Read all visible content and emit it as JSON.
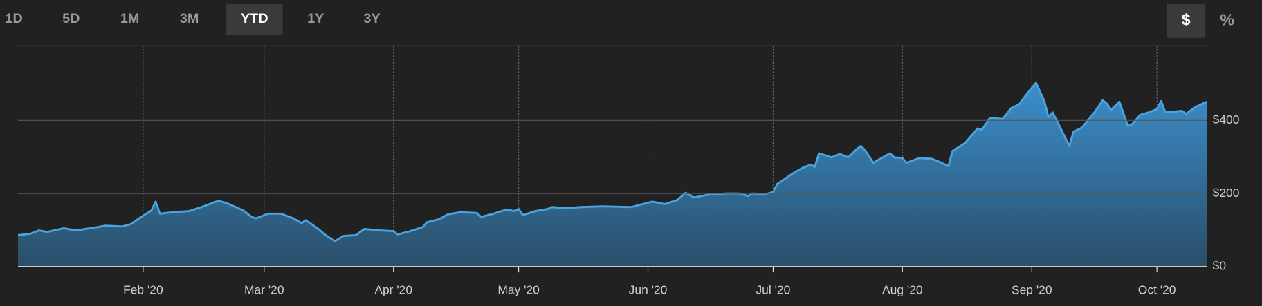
{
  "controls": {
    "ranges": [
      "1D",
      "5D",
      "1M",
      "3M",
      "YTD",
      "1Y",
      "3Y"
    ],
    "selected_range": 4,
    "units": [
      "$",
      "%"
    ],
    "selected_unit": 0
  },
  "chart_data": {
    "type": "area",
    "color": "#4aa3df",
    "grid": true,
    "x": [
      2,
      5,
      7,
      9,
      13,
      15,
      17,
      21,
      23,
      27,
      29,
      31,
      34,
      35,
      36,
      39,
      43,
      46,
      50,
      52,
      56,
      58,
      59,
      62,
      65,
      68,
      70,
      71,
      74,
      76,
      78,
      80,
      83,
      85,
      89,
      92,
      93,
      96,
      99,
      100,
      103,
      105,
      108,
      112,
      113,
      116,
      119,
      121,
      122,
      123,
      126,
      129,
      130,
      133,
      137,
      142,
      149,
      151,
      154,
      157,
      160,
      162,
      164,
      168,
      172,
      175,
      177,
      178,
      181,
      183,
      184,
      188,
      190,
      192,
      193,
      194,
      197,
      199,
      201,
      203,
      204,
      205,
      207,
      211,
      212,
      214,
      215,
      218,
      221,
      223,
      225,
      226,
      229,
      232,
      233,
      235,
      238,
      240,
      242,
      244,
      246,
      248,
      249,
      250,
      254,
      255,
      257,
      260,
      262,
      263,
      264,
      266,
      268,
      269,
      271,
      273,
      275,
      276,
      277,
      279,
      281,
      282,
      284,
      286,
      287
    ],
    "values": [
      86,
      90,
      99,
      95,
      105,
      101,
      101,
      108,
      112,
      110,
      116,
      132,
      154,
      178,
      145,
      149,
      152,
      163,
      180,
      174,
      154,
      136,
      132,
      145,
      145,
      132,
      119,
      127,
      103,
      84,
      70,
      84,
      86,
      103,
      99,
      97,
      88,
      97,
      108,
      121,
      130,
      143,
      149,
      147,
      136,
      145,
      156,
      152,
      158,
      141,
      152,
      158,
      163,
      160,
      163,
      165,
      163,
      169,
      178,
      171,
      182,
      202,
      189,
      198,
      200,
      200,
      193,
      200,
      198,
      204,
      226,
      257,
      270,
      279,
      273,
      310,
      299,
      308,
      299,
      321,
      330,
      319,
      284,
      310,
      299,
      297,
      284,
      297,
      295,
      286,
      275,
      316,
      338,
      378,
      374,
      407,
      404,
      433,
      444,
      475,
      503,
      453,
      409,
      422,
      330,
      369,
      380,
      422,
      455,
      446,
      429,
      451,
      385,
      389,
      415,
      422,
      431,
      453,
      422,
      424,
      426,
      418,
      435,
      446,
      451
    ],
    "xlim": [
      2,
      287
    ],
    "ylim": [
      0,
      604
    ],
    "xticks": [
      {
        "value": 32,
        "label": "Feb '20"
      },
      {
        "value": 61,
        "label": "Mar '20"
      },
      {
        "value": 92,
        "label": "Apr '20"
      },
      {
        "value": 122,
        "label": "May '20"
      },
      {
        "value": 153,
        "label": "Jun '20"
      },
      {
        "value": 183,
        "label": "Jul '20"
      },
      {
        "value": 214,
        "label": "Aug '20"
      },
      {
        "value": 245,
        "label": "Sep '20"
      },
      {
        "value": 275,
        "label": "Oct '20"
      }
    ],
    "yticks": [
      {
        "value": 0,
        "label": "$0"
      },
      {
        "value": 200,
        "label": "$200"
      },
      {
        "value": 400,
        "label": "$400"
      }
    ]
  }
}
